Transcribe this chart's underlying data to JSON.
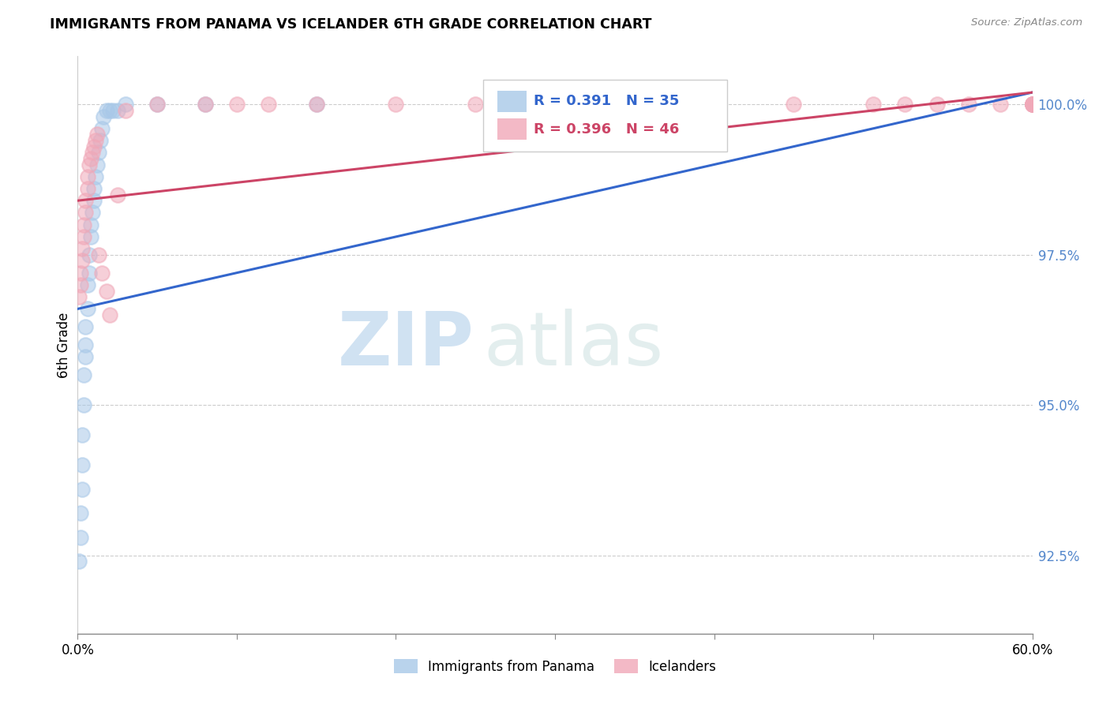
{
  "title": "IMMIGRANTS FROM PANAMA VS ICELANDER 6TH GRADE CORRELATION CHART",
  "source": "Source: ZipAtlas.com",
  "ylabel": "6th Grade",
  "ytick_labels": [
    "92.5%",
    "95.0%",
    "97.5%",
    "100.0%"
  ],
  "ytick_values": [
    0.925,
    0.95,
    0.975,
    1.0
  ],
  "xmin": 0.0,
  "xmax": 0.6,
  "ymin": 0.912,
  "ymax": 1.008,
  "blue_R": 0.391,
  "blue_N": 35,
  "pink_R": 0.396,
  "pink_N": 46,
  "legend_label1": "Immigrants from Panama",
  "legend_label2": "Icelanders",
  "blue_color": "#a8c8e8",
  "pink_color": "#f0a8b8",
  "blue_line_color": "#3366cc",
  "pink_line_color": "#cc4466",
  "watermark_zip": "ZIP",
  "watermark_atlas": "atlas",
  "blue_x": [
    0.001,
    0.002,
    0.002,
    0.003,
    0.003,
    0.003,
    0.004,
    0.004,
    0.005,
    0.005,
    0.005,
    0.006,
    0.006,
    0.007,
    0.007,
    0.008,
    0.008,
    0.009,
    0.01,
    0.01,
    0.011,
    0.012,
    0.013,
    0.014,
    0.015,
    0.016,
    0.018,
    0.02,
    0.022,
    0.025,
    0.03,
    0.05,
    0.08,
    0.15,
    0.32
  ],
  "blue_y": [
    0.924,
    0.928,
    0.932,
    0.936,
    0.94,
    0.945,
    0.95,
    0.955,
    0.958,
    0.96,
    0.963,
    0.966,
    0.97,
    0.972,
    0.975,
    0.978,
    0.98,
    0.982,
    0.984,
    0.986,
    0.988,
    0.99,
    0.992,
    0.994,
    0.996,
    0.998,
    0.999,
    0.999,
    0.999,
    0.999,
    1.0,
    1.0,
    1.0,
    1.0,
    1.0
  ],
  "pink_x": [
    0.001,
    0.002,
    0.002,
    0.003,
    0.003,
    0.004,
    0.004,
    0.005,
    0.005,
    0.006,
    0.006,
    0.007,
    0.008,
    0.009,
    0.01,
    0.011,
    0.012,
    0.013,
    0.015,
    0.018,
    0.02,
    0.025,
    0.03,
    0.05,
    0.08,
    0.1,
    0.12,
    0.15,
    0.2,
    0.25,
    0.3,
    0.35,
    0.4,
    0.45,
    0.5,
    0.52,
    0.54,
    0.56,
    0.58,
    0.6,
    0.6,
    0.6,
    0.6,
    0.6,
    0.6,
    0.6
  ],
  "pink_y": [
    0.968,
    0.97,
    0.972,
    0.974,
    0.976,
    0.978,
    0.98,
    0.982,
    0.984,
    0.986,
    0.988,
    0.99,
    0.991,
    0.992,
    0.993,
    0.994,
    0.995,
    0.975,
    0.972,
    0.969,
    0.965,
    0.985,
    0.999,
    1.0,
    1.0,
    1.0,
    1.0,
    1.0,
    1.0,
    1.0,
    1.0,
    1.0,
    1.0,
    1.0,
    1.0,
    1.0,
    1.0,
    1.0,
    1.0,
    1.0,
    1.0,
    1.0,
    1.0,
    1.0,
    1.0,
    1.0
  ],
  "blue_line_x0": 0.0,
  "blue_line_y0": 0.966,
  "blue_line_x1": 0.6,
  "blue_line_y1": 1.002,
  "pink_line_x0": 0.0,
  "pink_line_y0": 0.984,
  "pink_line_x1": 0.6,
  "pink_line_y1": 1.002
}
